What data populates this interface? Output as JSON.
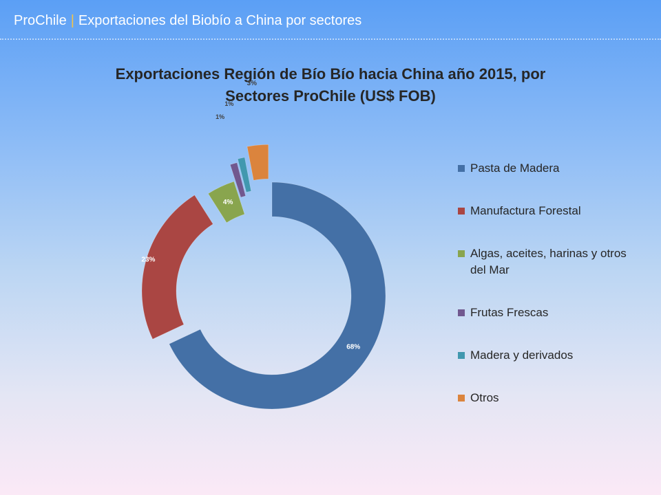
{
  "header": {
    "brand": "ProChile",
    "separator": "|",
    "title": "Exportaciones del Biobío a China por sectores"
  },
  "chart_data": {
    "type": "pie",
    "variant": "doughnut-exploded",
    "title_line1": "Exportaciones Región de Bío Bío hacia China año 2015, por",
    "title_line2": "Sectores ProChile (US$ FOB)",
    "legend_position": "right",
    "slices": [
      {
        "label": "Pasta de Madera",
        "value": 68,
        "data_label": "68%",
        "color": "#4470a6"
      },
      {
        "label": "Manufactura Forestal",
        "value": 23,
        "data_label": "23%",
        "color": "#aa4643"
      },
      {
        "label": "Algas, aceites, harinas y otros del Mar",
        "value": 4,
        "data_label": "4%",
        "color": "#89a54e"
      },
      {
        "label": "Frutas Frescas",
        "value": 1,
        "data_label": "1%",
        "color": "#71588f"
      },
      {
        "label": "Madera y derivados",
        "value": 1,
        "data_label": "1%",
        "color": "#4198af"
      },
      {
        "label": "Otros",
        "value": 3,
        "data_label": "3%",
        "color": "#db843d"
      }
    ]
  }
}
